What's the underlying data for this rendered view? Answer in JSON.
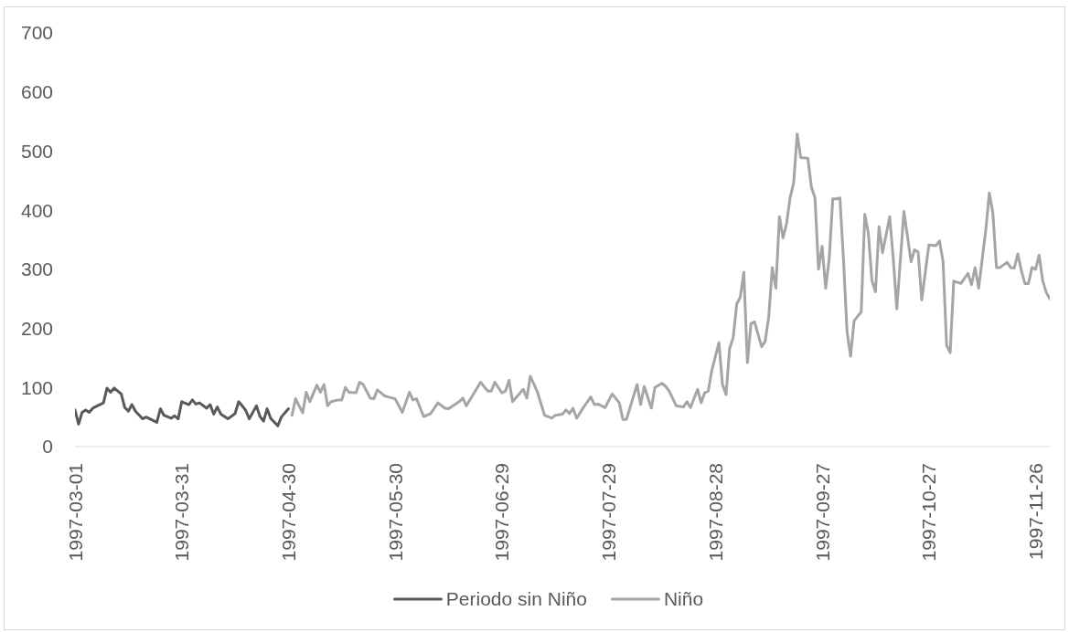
{
  "chart_data": {
    "type": "line",
    "xlim": [
      "1997-03-01",
      "1997-11-30"
    ],
    "xticks": [
      "1997-03-01",
      "1997-03-31",
      "1997-04-30",
      "1997-05-30",
      "1997-06-29",
      "1997-07-29",
      "1997-08-28",
      "1997-09-27",
      "1997-10-27",
      "1997-11-26"
    ],
    "ylim": [
      0,
      700
    ],
    "yticks": [
      0,
      100,
      200,
      300,
      400,
      500,
      600,
      700
    ],
    "legend": "bottom",
    "series": [
      {
        "name": "Periodo sin Niño",
        "color": "#595959",
        "x": [
          "1997-03-01",
          "1997-03-02",
          "1997-03-03",
          "1997-03-04",
          "1997-03-05",
          "1997-03-06",
          "1997-03-09",
          "1997-03-10",
          "1997-03-11",
          "1997-03-12",
          "1997-03-14",
          "1997-03-15",
          "1997-03-16",
          "1997-03-17",
          "1997-03-18",
          "1997-03-20",
          "1997-03-21",
          "1997-03-24",
          "1997-03-25",
          "1997-03-26",
          "1997-03-28",
          "1997-03-29",
          "1997-03-30",
          "1997-03-31",
          "1997-04-02",
          "1997-04-03",
          "1997-04-04",
          "1997-04-05",
          "1997-04-07",
          "1997-04-08",
          "1997-04-09",
          "1997-04-10",
          "1997-04-11",
          "1997-04-13",
          "1997-04-15",
          "1997-04-16",
          "1997-04-17",
          "1997-04-18",
          "1997-04-19",
          "1997-04-21",
          "1997-04-22",
          "1997-04-23",
          "1997-04-24",
          "1997-04-25",
          "1997-04-27",
          "1997-04-28",
          "1997-04-30"
        ],
        "values": [
          62,
          38,
          58,
          62,
          58,
          65,
          74,
          99,
          92,
          99,
          89,
          66,
          60,
          71,
          60,
          47,
          50,
          41,
          64,
          53,
          48,
          52,
          47,
          76,
          71,
          79,
          72,
          74,
          65,
          71,
          55,
          67,
          55,
          47,
          56,
          76,
          69,
          61,
          47,
          69,
          51,
          43,
          64,
          48,
          35,
          50,
          64
        ]
      },
      {
        "name": "Niño",
        "color": "#a5a5a5",
        "x": [
          "1997-05-01",
          "1997-05-02",
          "1997-05-04",
          "1997-05-05",
          "1997-05-06",
          "1997-05-08",
          "1997-05-09",
          "1997-05-10",
          "1997-05-11",
          "1997-05-12",
          "1997-05-14",
          "1997-05-15",
          "1997-05-16",
          "1997-05-17",
          "1997-05-19",
          "1997-05-20",
          "1997-05-21",
          "1997-05-23",
          "1997-05-24",
          "1997-05-25",
          "1997-05-27",
          "1997-05-28",
          "1997-05-30",
          "1997-06-01",
          "1997-06-03",
          "1997-06-04",
          "1997-06-05",
          "1997-06-07",
          "1997-06-09",
          "1997-06-11",
          "1997-06-13",
          "1997-06-14",
          "1997-06-17",
          "1997-06-18",
          "1997-06-19",
          "1997-06-21",
          "1997-06-23",
          "1997-06-25",
          "1997-06-26",
          "1997-06-27",
          "1997-06-29",
          "1997-06-30",
          "1997-07-01",
          "1997-07-02",
          "1997-07-05",
          "1997-07-06",
          "1997-07-07",
          "1997-07-09",
          "1997-07-11",
          "1997-07-13",
          "1997-07-14",
          "1997-07-16",
          "1997-07-17",
          "1997-07-18",
          "1997-07-19",
          "1997-07-20",
          "1997-07-22",
          "1997-07-24",
          "1997-07-25",
          "1997-07-26",
          "1997-07-28",
          "1997-07-30",
          "1997-08-01",
          "1997-08-02",
          "1997-08-03",
          "1997-08-06",
          "1997-08-07",
          "1997-08-08",
          "1997-08-10",
          "1997-08-11",
          "1997-08-13",
          "1997-08-14",
          "1997-08-15",
          "1997-08-17",
          "1997-08-19",
          "1997-08-20",
          "1997-08-21",
          "1997-08-23",
          "1997-08-24",
          "1997-08-25",
          "1997-08-26",
          "1997-08-27",
          "1997-08-29",
          "1997-08-30",
          "1997-08-31",
          "1997-09-01",
          "1997-09-02",
          "1997-09-03",
          "1997-09-04",
          "1997-09-05",
          "1997-09-06",
          "1997-09-07",
          "1997-09-08",
          "1997-09-10",
          "1997-09-11",
          "1997-09-12",
          "1997-09-13",
          "1997-09-14",
          "1997-09-15",
          "1997-09-16",
          "1997-09-17",
          "1997-09-18",
          "1997-09-19",
          "1997-09-20",
          "1997-09-21",
          "1997-09-23",
          "1997-09-24",
          "1997-09-25",
          "1997-09-26",
          "1997-09-27",
          "1997-09-28",
          "1997-09-29",
          "1997-09-30",
          "1997-10-01",
          "1997-10-02",
          "1997-10-03",
          "1997-10-04",
          "1997-10-05",
          "1997-10-06",
          "1997-10-08",
          "1997-10-09",
          "1997-10-10",
          "1997-10-11",
          "1997-10-12",
          "1997-10-13",
          "1997-10-14",
          "1997-10-16",
          "1997-10-17",
          "1997-10-18",
          "1997-10-20",
          "1997-10-22",
          "1997-10-23",
          "1997-10-24",
          "1997-10-25",
          "1997-10-27",
          "1997-10-29",
          "1997-10-30",
          "1997-10-31",
          "1997-11-01",
          "1997-11-02",
          "1997-11-03",
          "1997-11-05",
          "1997-11-07",
          "1997-11-08",
          "1997-11-09",
          "1997-11-10",
          "1997-11-12",
          "1997-11-13",
          "1997-11-14",
          "1997-11-15",
          "1997-11-16",
          "1997-11-18",
          "1997-11-19",
          "1997-11-20",
          "1997-11-21",
          "1997-11-22",
          "1997-11-23",
          "1997-11-24",
          "1997-11-25",
          "1997-11-26",
          "1997-11-27",
          "1997-11-28",
          "1997-11-29",
          "1997-11-30"
        ],
        "values": [
          53,
          81,
          57,
          92,
          76,
          104,
          92,
          105,
          69,
          76,
          79,
          79,
          100,
          92,
          91,
          109,
          105,
          82,
          81,
          96,
          86,
          84,
          81,
          58,
          92,
          79,
          81,
          51,
          56,
          74,
          65,
          64,
          76,
          82,
          69,
          89,
          109,
          94,
          94,
          109,
          91,
          94,
          112,
          76,
          97,
          82,
          119,
          92,
          53,
          48,
          53,
          55,
          62,
          56,
          65,
          48,
          67,
          84,
          71,
          72,
          66,
          89,
          74,
          46,
          46,
          105,
          71,
          102,
          65,
          100,
          107,
          102,
          94,
          69,
          67,
          76,
          66,
          97,
          74,
          91,
          94,
          129,
          176,
          105,
          88,
          166,
          184,
          241,
          253,
          295,
          142,
          208,
          211,
          169,
          178,
          220,
          303,
          268,
          389,
          353,
          377,
          421,
          446,
          529,
          489,
          488,
          439,
          421,
          300,
          339,
          268,
          318,
          419,
          419,
          421,
          318,
          195,
          153,
          213,
          228,
          393,
          361,
          281,
          262,
          372,
          328,
          389,
          318,
          233,
          398,
          313,
          333,
          329,
          248,
          341,
          340,
          348,
          313,
          171,
          159,
          280,
          276,
          293,
          274,
          303,
          268,
          366,
          429,
          395,
          303,
          303,
          312,
          303,
          302,
          326,
          298,
          276,
          276,
          303,
          300,
          324,
          281,
          261,
          250
        ]
      }
    ]
  }
}
